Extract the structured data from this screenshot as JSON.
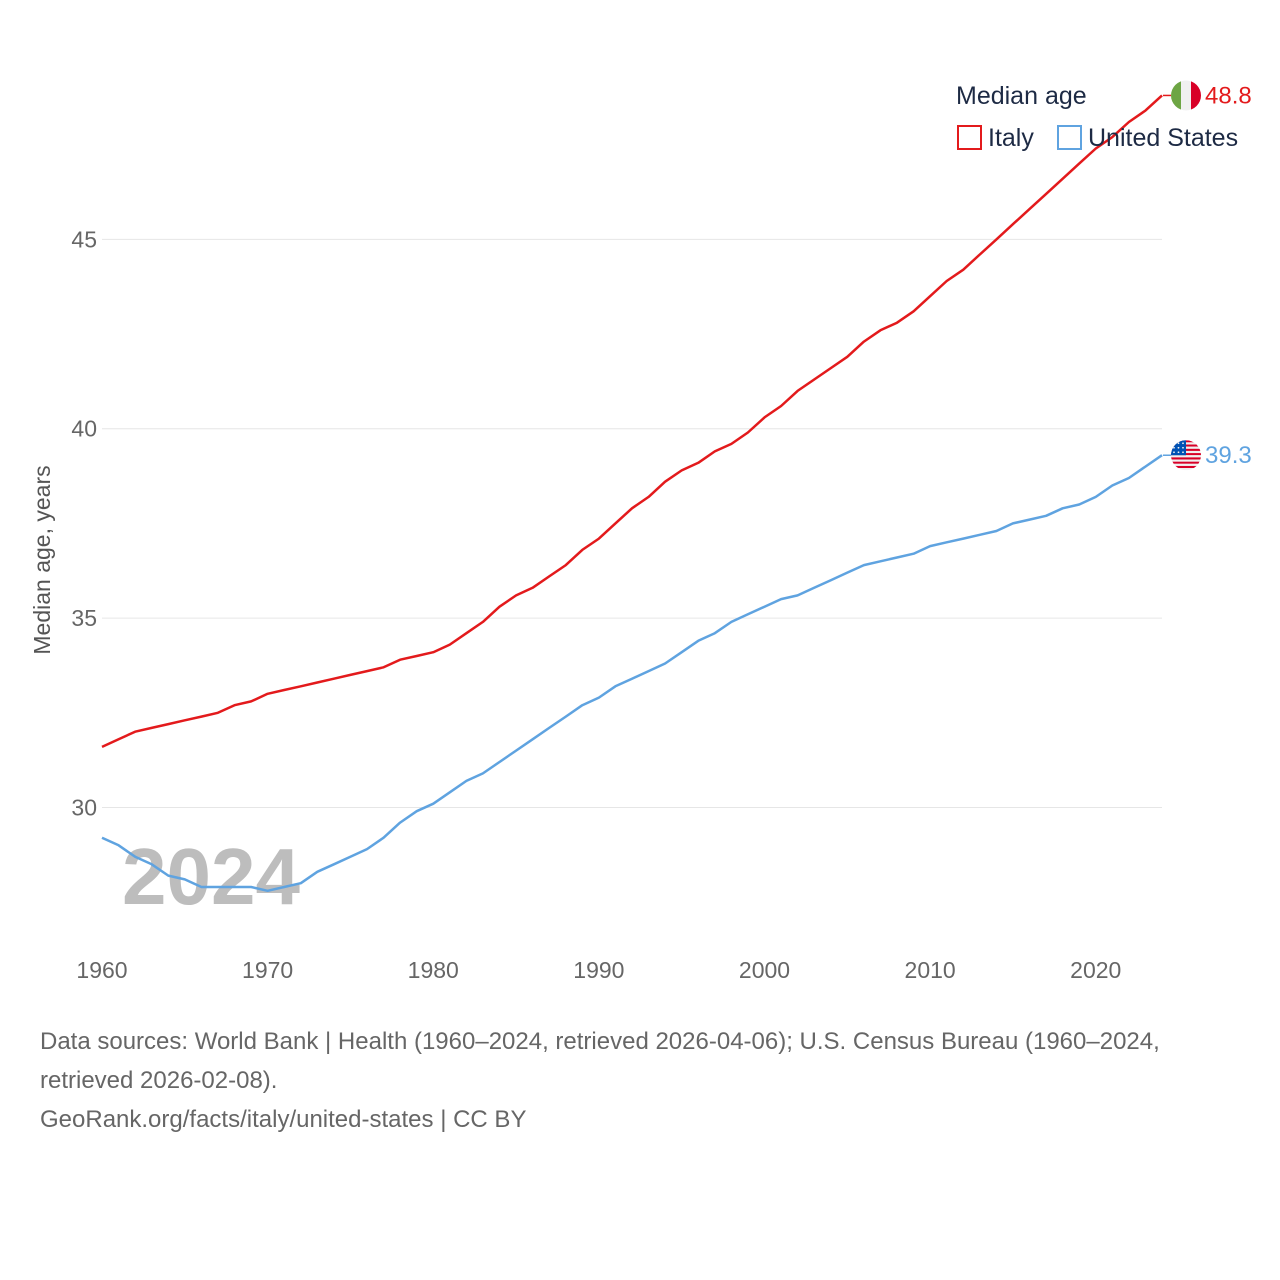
{
  "chart_data": {
    "type": "line",
    "title": "",
    "xlabel": "",
    "ylabel": "Median age, years",
    "xlim": [
      1960,
      2024
    ],
    "ylim": [
      26.5,
      50
    ],
    "x_ticks": [
      1960,
      1970,
      1980,
      1990,
      2000,
      2010,
      2020
    ],
    "y_ticks": [
      30,
      35,
      40,
      45
    ],
    "grid": true,
    "legend": {
      "title": "Median age",
      "position": "top-right"
    },
    "watermark_year": "2024",
    "x": [
      1960,
      1961,
      1962,
      1963,
      1964,
      1965,
      1966,
      1967,
      1968,
      1969,
      1970,
      1971,
      1972,
      1973,
      1974,
      1975,
      1976,
      1977,
      1978,
      1979,
      1980,
      1981,
      1982,
      1983,
      1984,
      1985,
      1986,
      1987,
      1988,
      1989,
      1990,
      1991,
      1992,
      1993,
      1994,
      1995,
      1996,
      1997,
      1998,
      1999,
      2000,
      2001,
      2002,
      2003,
      2004,
      2005,
      2006,
      2007,
      2008,
      2009,
      2010,
      2011,
      2012,
      2013,
      2014,
      2015,
      2016,
      2017,
      2018,
      2019,
      2020,
      2021,
      2022,
      2023,
      2024
    ],
    "series": [
      {
        "name": "Italy",
        "color": "#e31a1c",
        "end_label": "48.8",
        "flag": "italy-flag",
        "values": [
          31.6,
          31.8,
          32.0,
          32.1,
          32.2,
          32.3,
          32.4,
          32.5,
          32.7,
          32.8,
          33.0,
          33.1,
          33.2,
          33.3,
          33.4,
          33.5,
          33.6,
          33.7,
          33.9,
          34.0,
          34.1,
          34.3,
          34.6,
          34.9,
          35.3,
          35.6,
          35.8,
          36.1,
          36.4,
          36.8,
          37.1,
          37.5,
          37.9,
          38.2,
          38.6,
          38.9,
          39.1,
          39.4,
          39.6,
          39.9,
          40.3,
          40.6,
          41.0,
          41.3,
          41.6,
          41.9,
          42.3,
          42.6,
          42.8,
          43.1,
          43.5,
          43.9,
          44.2,
          44.6,
          45.0,
          45.4,
          45.8,
          46.2,
          46.6,
          47.0,
          47.4,
          47.7,
          48.1,
          48.4,
          48.8
        ]
      },
      {
        "name": "United States",
        "color": "#5fa3e0",
        "end_label": "39.3",
        "flag": "usa-flag",
        "values": [
          29.2,
          29.0,
          28.7,
          28.5,
          28.2,
          28.1,
          27.9,
          27.9,
          27.9,
          27.9,
          27.8,
          27.9,
          28.0,
          28.3,
          28.5,
          28.7,
          28.9,
          29.2,
          29.6,
          29.9,
          30.1,
          30.4,
          30.7,
          30.9,
          31.2,
          31.5,
          31.8,
          32.1,
          32.4,
          32.7,
          32.9,
          33.2,
          33.4,
          33.6,
          33.8,
          34.1,
          34.4,
          34.6,
          34.9,
          35.1,
          35.3,
          35.5,
          35.6,
          35.8,
          36.0,
          36.2,
          36.4,
          36.5,
          36.6,
          36.7,
          36.9,
          37.0,
          37.1,
          37.2,
          37.3,
          37.5,
          37.6,
          37.7,
          37.9,
          38.0,
          38.2,
          38.5,
          38.7,
          39.0,
          39.3
        ]
      }
    ]
  },
  "footer": {
    "sources": "Data sources: World Bank | Health (1960–2024, retrieved 2026-04-06); U.S. Census Bureau (1960–2024, retrieved 2026-02-08).",
    "credit": "GeoRank.org/facts/italy/united-states | CC BY"
  }
}
